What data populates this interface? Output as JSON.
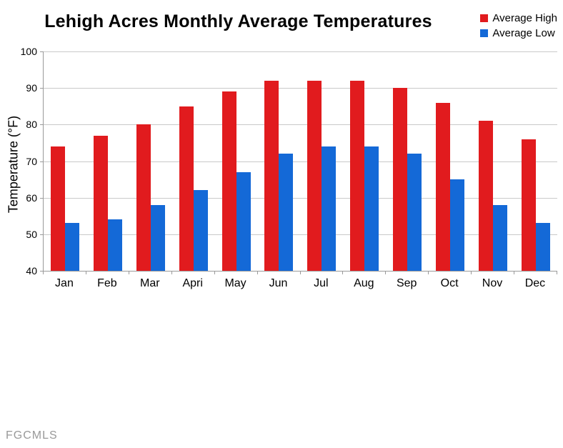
{
  "title": "Lehigh Acres Monthly Average Temperatures",
  "watermark": "FGCMLS",
  "colors": {
    "background": "#ffffff",
    "high_bar": "#e11b1e",
    "low_bar": "#1469d7",
    "grid": "#c9c9c9",
    "axis": "#9a9a9a",
    "text": "#000000",
    "watermark": "#999999"
  },
  "chart_data": {
    "type": "bar",
    "title": "Lehigh Acres Monthly Average Temperatures",
    "categories": [
      "Jan",
      "Feb",
      "Mar",
      "Apri",
      "May",
      "Jun",
      "Jul",
      "Aug",
      "Sep",
      "Oct",
      "Nov",
      "Dec"
    ],
    "series": [
      {
        "name": "Average High",
        "color": "#e11b1e",
        "values": [
          74,
          77,
          80,
          85,
          89,
          92,
          92,
          92,
          90,
          86,
          81,
          76
        ]
      },
      {
        "name": "Average Low",
        "color": "#1469d7",
        "values": [
          53,
          54,
          58,
          62,
          67,
          72,
          74,
          74,
          72,
          65,
          58,
          53
        ]
      }
    ],
    "xlabel": "",
    "ylabel": "Temperature (°F)",
    "ylim": [
      40,
      100
    ],
    "yticks": [
      40,
      50,
      60,
      70,
      80,
      90,
      100
    ],
    "grid": true,
    "legend_position": "top-right"
  }
}
